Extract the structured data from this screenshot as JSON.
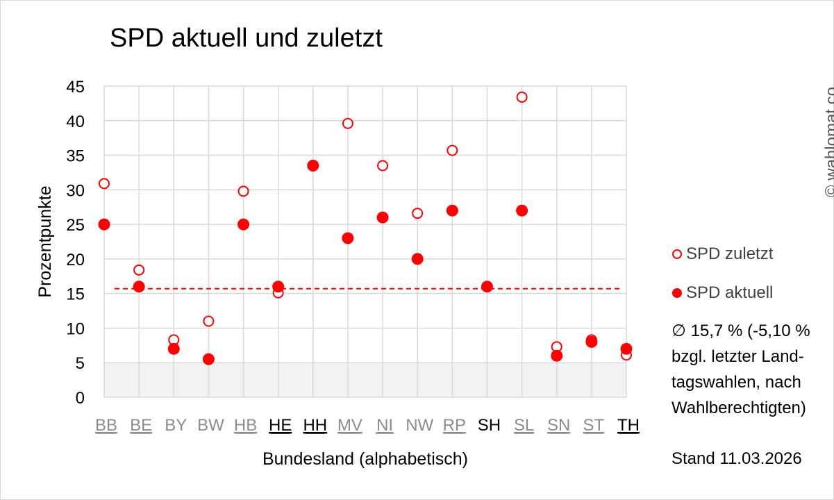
{
  "chart_data": {
    "type": "scatter",
    "title": "SPD aktuell und zuletzt",
    "xlabel": "Bundesland (alphabetisch)",
    "ylabel": "Prozentpunkte",
    "ylim": [
      0,
      45
    ],
    "yticks": [
      "0",
      "5",
      "10",
      "15",
      "20",
      "25",
      "30",
      "35",
      "40",
      "45"
    ],
    "grid": true,
    "categories": [
      {
        "label": "BB",
        "color": "#8c8c8c",
        "underline": true
      },
      {
        "label": "BE",
        "color": "#8c8c8c",
        "underline": true
      },
      {
        "label": "BY",
        "color": "#8c8c8c",
        "underline": false
      },
      {
        "label": "BW",
        "color": "#8c8c8c",
        "underline": false
      },
      {
        "label": "HB",
        "color": "#8c8c8c",
        "underline": true
      },
      {
        "label": "HE",
        "color": "#000000",
        "underline": true
      },
      {
        "label": "HH",
        "color": "#000000",
        "underline": true
      },
      {
        "label": "MV",
        "color": "#8c8c8c",
        "underline": true
      },
      {
        "label": "NI",
        "color": "#8c8c8c",
        "underline": true
      },
      {
        "label": "NW",
        "color": "#8c8c8c",
        "underline": false
      },
      {
        "label": "RP",
        "color": "#8c8c8c",
        "underline": true
      },
      {
        "label": "SH",
        "color": "#000000",
        "underline": false
      },
      {
        "label": "SL",
        "color": "#8c8c8c",
        "underline": true
      },
      {
        "label": "SN",
        "color": "#8c8c8c",
        "underline": true
      },
      {
        "label": "ST",
        "color": "#8c8c8c",
        "underline": true
      },
      {
        "label": "TH",
        "color": "#000000",
        "underline": true
      }
    ],
    "series": [
      {
        "name": "SPD zuletzt",
        "marker": "hollow",
        "color": "#ff0000",
        "values": [
          30.9,
          18.4,
          8.3,
          11,
          29.8,
          15.1,
          33.5,
          39.6,
          33.5,
          26.6,
          35.7,
          16.0,
          43.4,
          7.3,
          8.3,
          6.1
        ]
      },
      {
        "name": "SPD aktuell",
        "marker": "filled",
        "color": "#ff0000",
        "values": [
          25.0,
          16.0,
          7.0,
          5.5,
          25.0,
          16.0,
          33.5,
          23.0,
          26.0,
          20.0,
          27.0,
          16.0,
          27.0,
          6.0,
          8.0,
          7.0
        ]
      }
    ],
    "average_line": 15.7,
    "shaded_band": [
      0,
      5
    ],
    "colors": {
      "marker": "#ff0000",
      "grid": "#d9d9d9",
      "band": "#f2f2f2"
    }
  },
  "legend": {
    "zuletzt": "SPD zuletzt",
    "aktuell": "SPD aktuell"
  },
  "note_lines": [
    "∅ 15,7 % (-5,10 %",
    "bzgl. letzter Land-",
    "tagswahlen, nach",
    "Wahlberechtigten)"
  ],
  "stand": "Stand 11.03.2026",
  "copyright": "© wahlomat.co"
}
